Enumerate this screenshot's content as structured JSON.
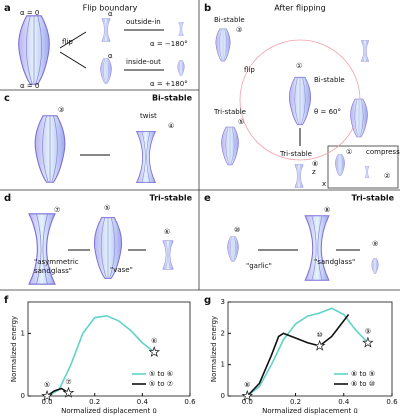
{
  "panels": [
    {
      "label": "a",
      "title": "Flip boundary",
      "texts": [
        "α = 0",
        "α = 0",
        "flip",
        "outside-in",
        "α = −180°",
        "inside-out",
        "α = +180°",
        "α",
        "α"
      ]
    },
    {
      "label": "b",
      "title": "After flipping",
      "texts": [
        "Bi-stable",
        "③",
        "flip",
        "①",
        "Bi-stable",
        "θ = 60°",
        "Tri-stable",
        "⑤",
        "Tri-stable",
        "⑧",
        "①",
        "②",
        "compress",
        "z",
        "x"
      ]
    },
    {
      "label": "c",
      "title": "Bi-stable",
      "texts": [
        "③",
        "twist",
        "④"
      ]
    },
    {
      "label": "d",
      "title": "Tri-stable",
      "texts": [
        "⑦",
        "⑤",
        "⑥",
        "\"asymmetric",
        "sandglass\"",
        "\"vase\""
      ]
    },
    {
      "label": "e",
      "title": "Tri-stable",
      "texts": [
        "⑩",
        "⑧",
        "⑨",
        "\"garlic\"",
        "\"sandglass\""
      ]
    }
  ],
  "chart_data": [
    {
      "type": "line",
      "panel_label": "f",
      "x_label": "Normalized displacement ū",
      "y_label": "Normalized energy",
      "xlim": [
        -0.08,
        0.6
      ],
      "xticks": [
        {
          "value": 0,
          "label": "0.0"
        },
        0.2,
        0.4,
        0.6
      ],
      "ylim": [
        0,
        1.5
      ],
      "yticks": [
        0,
        1
      ],
      "series": [
        {
          "name": "⑤ to ⑥",
          "color": "#5fd3c8",
          "x": [
            0,
            0.05,
            0.1,
            0.15,
            0.2,
            0.25,
            0.3,
            0.35,
            0.4,
            0.45
          ],
          "values": [
            0,
            0.1,
            0.5,
            1.0,
            1.25,
            1.28,
            1.2,
            1.05,
            0.85,
            0.7
          ]
        },
        {
          "name": "⑤ to ⑦",
          "color": "#111111",
          "x": [
            0,
            0.03,
            0.06,
            0.09
          ],
          "values": [
            0,
            0.08,
            0.12,
            0.05
          ]
        }
      ],
      "points": {
        "x": [
          0,
          0.45,
          0.09
        ],
        "values": [
          0,
          0.7,
          0.05
        ],
        "labels": [
          "⑤",
          "⑥",
          "⑦"
        ]
      }
    },
    {
      "type": "line",
      "panel_label": "g",
      "x_label": "Normalized displacement ū",
      "y_label": "Normalized energy",
      "xlim": [
        -0.08,
        0.6
      ],
      "xticks": [
        {
          "value": 0,
          "label": "0.0"
        },
        0.2,
        0.4,
        0.6
      ],
      "ylim": [
        0,
        3
      ],
      "yticks": [
        0,
        1,
        2,
        3
      ],
      "series": [
        {
          "name": "⑧ to ⑨",
          "color": "#5fd3c8",
          "x": [
            0,
            0.05,
            0.1,
            0.15,
            0.2,
            0.25,
            0.3,
            0.35,
            0.4,
            0.45,
            0.5
          ],
          "values": [
            0,
            0.3,
            1.0,
            1.8,
            2.3,
            2.55,
            2.65,
            2.8,
            2.6,
            2.1,
            1.7
          ]
        },
        {
          "name": "⑧ to ⑩",
          "color": "#111111",
          "x": [
            0,
            0.05,
            0.1,
            0.13,
            0.15,
            0.2,
            0.25,
            0.3,
            0.35,
            0.4,
            0.42
          ],
          "values": [
            0,
            0.4,
            1.3,
            1.9,
            2.0,
            1.85,
            1.7,
            1.6,
            1.9,
            2.4,
            2.6
          ]
        }
      ],
      "points": {
        "x": [
          0,
          0.3,
          0.5
        ],
        "values": [
          0,
          1.6,
          1.7
        ],
        "labels": [
          "⑧",
          "⑩",
          "⑨"
        ]
      }
    }
  ]
}
